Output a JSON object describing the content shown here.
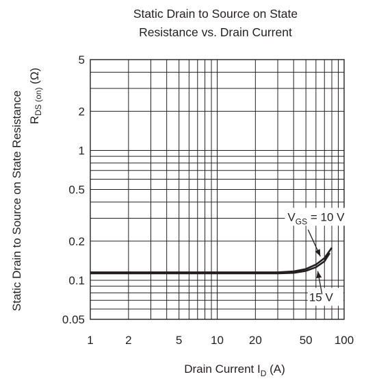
{
  "chart_data": {
    "type": "line",
    "title": [
      "Static Drain to Source on State",
      "Resistance vs. Drain Current"
    ],
    "xlabel": {
      "main": "Drain Current  I",
      "sub": "D",
      "unit": "(A)"
    },
    "ylabel": {
      "line1": "Static Drain to Source on State Resistance",
      "line2_main": "R",
      "line2_sub": "DS (on)",
      "line2_unit": "(Ω)"
    },
    "x_scale": "log",
    "y_scale": "log",
    "xlim": [
      1,
      100
    ],
    "ylim": [
      0.05,
      5
    ],
    "grid": true,
    "x_ticks": [
      {
        "value": 1,
        "label": "1"
      },
      {
        "value": 2,
        "label": "2"
      },
      {
        "value": 5,
        "label": "5"
      },
      {
        "value": 10,
        "label": "10"
      },
      {
        "value": 20,
        "label": "20"
      },
      {
        "value": 50,
        "label": "50"
      },
      {
        "value": 100,
        "label": "100"
      }
    ],
    "y_ticks": [
      {
        "value": 5,
        "label": "5"
      },
      {
        "value": 2,
        "label": "2"
      },
      {
        "value": 1,
        "label": "1"
      },
      {
        "value": 0.5,
        "label": "0.5"
      },
      {
        "value": 0.2,
        "label": "0.2"
      },
      {
        "value": 0.1,
        "label": "0.1"
      },
      {
        "value": 0.05,
        "label": "0.05"
      }
    ],
    "series": [
      {
        "name": "VGS = 10 V",
        "x": [
          1,
          10,
          30,
          40,
          50,
          60,
          70,
          80
        ],
        "y": [
          0.115,
          0.115,
          0.115,
          0.117,
          0.122,
          0.132,
          0.148,
          0.178
        ]
      },
      {
        "name": "15 V",
        "x": [
          1,
          10,
          30,
          40,
          50,
          60,
          70,
          77
        ],
        "y": [
          0.113,
          0.113,
          0.113,
          0.114,
          0.118,
          0.126,
          0.14,
          0.162
        ]
      }
    ],
    "annotations": [
      {
        "main": "V",
        "sub": "GS",
        "rest": " = 10 V",
        "series": "VGS = 10 V"
      },
      {
        "text": "15 V",
        "series": "15 V"
      }
    ]
  }
}
